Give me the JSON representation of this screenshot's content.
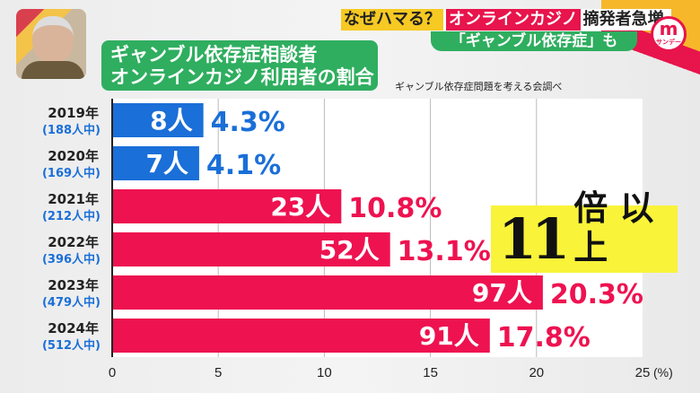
{
  "header": {
    "tag": "なぜハマる？",
    "topic": "オンラインカジノ",
    "rest": "摘発者急増",
    "sub": "「ギャンブル依存症」も",
    "logo": "m",
    "logo_sub": "サンデー"
  },
  "title": {
    "line1": "ギャンブル依存症相談者",
    "line2": "オンラインカジノ利用者の割合"
  },
  "source": "ギャンブル依存症問題を考える会調べ",
  "callout": {
    "number": "11",
    "text": "倍 以上"
  },
  "colors": {
    "blue": "#1a6fd8",
    "red": "#ee1250",
    "green": "#2fae5f",
    "yellow": "#f9f33a"
  },
  "chart_data": {
    "type": "bar",
    "orientation": "horizontal",
    "categories": [
      "2019年",
      "2020年",
      "2021年",
      "2022年",
      "2023年",
      "2024年"
    ],
    "subcategories": [
      "(188人中)",
      "(169人中)",
      "(212人中)",
      "(396人中)",
      "(479人中)",
      "(512人中)"
    ],
    "counts": [
      "8人",
      "7人",
      "23人",
      "52人",
      "97人",
      "91人"
    ],
    "values": [
      4.3,
      4.1,
      10.8,
      13.1,
      20.3,
      17.8
    ],
    "value_labels": [
      "4.3%",
      "4.1%",
      "10.8%",
      "13.1%",
      "20.3%",
      "17.8%"
    ],
    "bar_colors": [
      "blue",
      "blue",
      "red",
      "red",
      "red",
      "red"
    ],
    "xlim": [
      0,
      25
    ],
    "xticks": [
      "0",
      "5",
      "10",
      "15",
      "20",
      "25"
    ],
    "xunit": "(%)",
    "grid": true
  }
}
